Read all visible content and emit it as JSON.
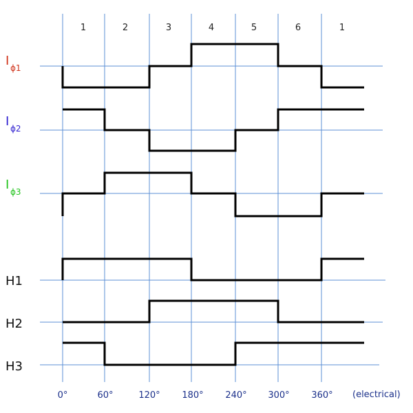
{
  "segments": [
    "1",
    "2",
    "3",
    "4",
    "5",
    "6",
    "1"
  ],
  "angles": [
    "0°",
    "60°",
    "120°",
    "180°",
    "240°",
    "300°",
    "360°"
  ],
  "unit_label": "(electrical)",
  "phases": [
    {
      "main": "I",
      "sub": "ϕ1",
      "color": "#d0331b"
    },
    {
      "main": "I",
      "sub": "ϕ2",
      "color": "#2f1fd0"
    },
    {
      "main": "I",
      "sub": "ϕ3",
      "color": "#22c31c"
    }
  ],
  "halls": [
    "H1",
    "H2",
    "H3"
  ],
  "colors": {
    "grid": "#5b8fd6",
    "waveform": "#000000"
  },
  "waveforms": {
    "phase_levels_per_segment": {
      "description_note": "levels -1/0/+1 per 60° segment",
      "I_phi1": [
        -1,
        -1,
        0,
        1,
        1,
        0,
        -1
      ],
      "I_phi2": [
        1,
        0,
        -1,
        -1,
        0,
        1,
        1
      ],
      "I_phi3": [
        0,
        1,
        1,
        0,
        -1,
        -1,
        0
      ]
    },
    "hall_levels_per_segment": {
      "H1": [
        1,
        1,
        1,
        0,
        0,
        0,
        1
      ],
      "H2": [
        0,
        0,
        1,
        1,
        1,
        0,
        0
      ],
      "H3": [
        1,
        0,
        0,
        0,
        1,
        1,
        1
      ]
    }
  }
}
